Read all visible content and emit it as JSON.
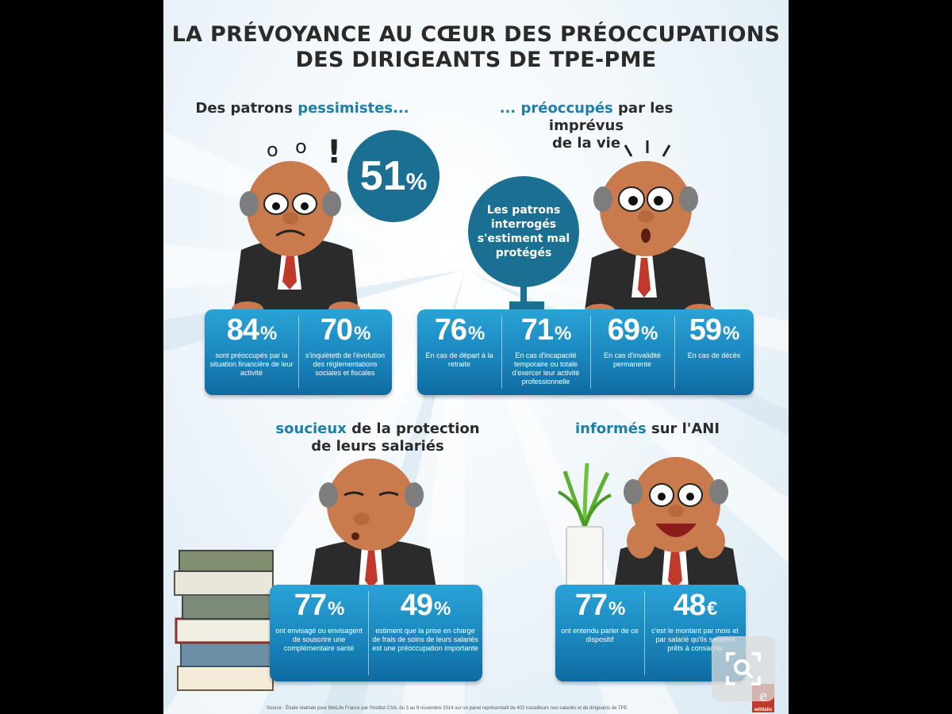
{
  "title": {
    "line1": "LA PRÉVOYANCE AU CŒUR DES PRÉOCCUPATIONS",
    "line2": "DES DIRIGEANTS DE TPE-PME"
  },
  "sections": {
    "pessimistes": {
      "pre": "Des patrons ",
      "accent": "pessimistes...",
      "circle_value": "51",
      "circle_unit": "%",
      "stats": [
        {
          "value": "84",
          "unit": "%",
          "text": "sont préoccupés par la situation financière de leur activité"
        },
        {
          "value": "70",
          "unit": "%",
          "text": "s'inquiètetb de l'évolution des réglementations sociales et fiscales"
        }
      ]
    },
    "preoccupes": {
      "accent": "... préoccupés",
      "line1_rest": " par les imprévus",
      "line2": "de la vie",
      "circle_text": "Les patrons interrogés s'estiment mal protégés",
      "stats": [
        {
          "value": "76",
          "unit": "%",
          "text": "En cas de départ à la retraite"
        },
        {
          "value": "71",
          "unit": "%",
          "text": "En cas d'incapacité temporaire ou totale d'exercer leur activité professionnelle"
        },
        {
          "value": "69",
          "unit": "%",
          "text": "En cas d'invalidité permanente"
        },
        {
          "value": "59",
          "unit": "%",
          "text": "En cas de décès"
        }
      ]
    },
    "soucieux": {
      "accent": "soucieux",
      "line1_rest": " de la protection",
      "line2": "de leurs salariés",
      "stats": [
        {
          "value": "77",
          "unit": "%",
          "text": "ont envisagé ou envisagent de souscrire une complémentaire santé"
        },
        {
          "value": "49",
          "unit": "%",
          "text": "estiment que la prise en charge de frais de soins de leurs salariés est une préoccupation importante"
        }
      ]
    },
    "informes": {
      "accent": "informés",
      "rest": " sur l'ANI",
      "stats": [
        {
          "value": "77",
          "unit": "%",
          "text": "ont entendu parler de ce dispositif"
        },
        {
          "value": "48",
          "unit": "€",
          "text": "c'est le montant par mois et par salarié qu'ils seraient prêts à consacrer"
        }
      ]
    }
  },
  "source": "Source : Étude réalisée pour MetLife France par l'Institut CSA, du 3 au 9 novembre 2014 sur un panel représentatif de 402 travailleurs non-salariés et de dirigeants de TPE",
  "logo": {
    "letter": "e",
    "sub": "editialis"
  },
  "icons": [
    "zoom-icon"
  ],
  "colors": {
    "accent": "#1f7fa6",
    "box": "#1a86bd",
    "circle": "#1b6f92"
  }
}
